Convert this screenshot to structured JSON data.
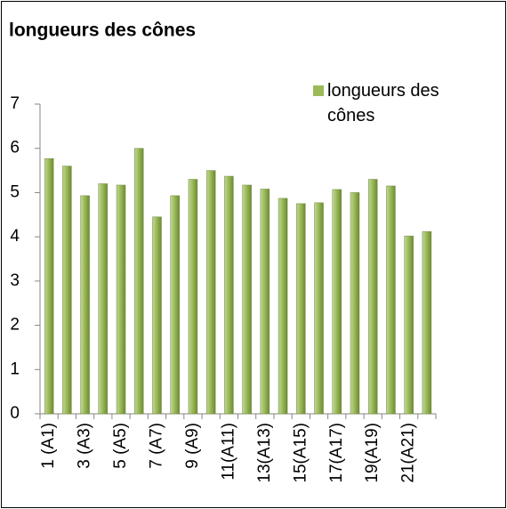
{
  "chart_data": {
    "type": "bar",
    "title": "longueurs des cônes",
    "categories": [
      "1 (A1)",
      null,
      "3 (A3)",
      null,
      "5 (A5)",
      null,
      "7 (A7)",
      null,
      "9 (A9)",
      null,
      "11(A11)",
      null,
      "13(A13)",
      null,
      "15(A15)",
      null,
      "17(A17)",
      null,
      "19(A19)",
      null,
      "21(A21)",
      null
    ],
    "series": [
      {
        "name": "longueurs des cônes",
        "color": "#9bbb59",
        "values": [
          5.77,
          5.6,
          4.93,
          5.2,
          5.17,
          6.0,
          4.45,
          4.93,
          5.3,
          5.5,
          5.37,
          5.17,
          5.08,
          4.87,
          4.75,
          4.77,
          5.07,
          5.0,
          5.3,
          5.15,
          4.02,
          4.12
        ]
      }
    ],
    "ylim": [
      0,
      7
    ],
    "yticks": [
      0,
      1,
      2,
      3,
      4,
      5,
      6,
      7
    ],
    "legend": "top-right"
  }
}
